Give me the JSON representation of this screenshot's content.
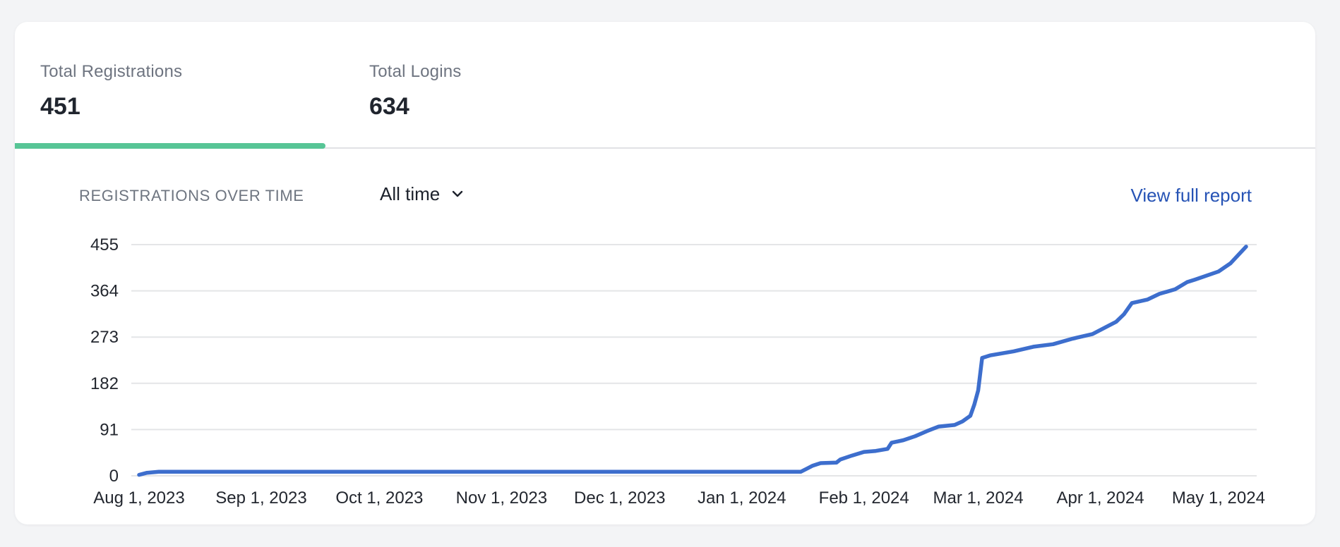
{
  "colors": {
    "page_background": "#f3f4f6",
    "card_background": "#ffffff",
    "active_tab_accent": "#57c596",
    "series_line": "#3d6ecd",
    "link_blue": "#2653b5",
    "gridline": "#e4e5e7",
    "axis_text": "#23272f",
    "muted_text": "#6e7480"
  },
  "tabs": [
    {
      "label": "Total Registrations",
      "value": "451",
      "active": true
    },
    {
      "label": "Total Logins",
      "value": "634",
      "active": false
    }
  ],
  "chart_header": {
    "title": "REGISTRATIONS OVER TIME",
    "range_selector": {
      "value": "All time",
      "icon": "chevron-down"
    },
    "link": "View full report"
  },
  "chart_data": {
    "type": "line",
    "title": "REGISTRATIONS OVER TIME",
    "series_name": "Registrations",
    "grid": "horizontal",
    "legend": "none",
    "ylim": [
      0,
      455
    ],
    "y_ticks": [
      0,
      91,
      182,
      273,
      364,
      455
    ],
    "x_ticks": [
      {
        "label": "Aug 1, 2023",
        "day": 0
      },
      {
        "label": "Sep 1, 2023",
        "day": 31
      },
      {
        "label": "Oct 1, 2023",
        "day": 61
      },
      {
        "label": "Nov 1, 2023",
        "day": 92
      },
      {
        "label": "Dec 1, 2023",
        "day": 122
      },
      {
        "label": "Jan 1, 2024",
        "day": 153
      },
      {
        "label": "Feb 1, 2024",
        "day": 184
      },
      {
        "label": "Mar 1, 2024",
        "day": 213
      },
      {
        "label": "Apr 1, 2024",
        "day": 244
      },
      {
        "label": "May 1, 2024",
        "day": 274
      }
    ],
    "points": [
      [
        0,
        2
      ],
      [
        2,
        6
      ],
      [
        5,
        8
      ],
      [
        31,
        8
      ],
      [
        61,
        8
      ],
      [
        92,
        8
      ],
      [
        122,
        8
      ],
      [
        153,
        8
      ],
      [
        168,
        8
      ],
      [
        171,
        20
      ],
      [
        173,
        25
      ],
      [
        177,
        26
      ],
      [
        178,
        32
      ],
      [
        181,
        40
      ],
      [
        184,
        47
      ],
      [
        187,
        49
      ],
      [
        190,
        53
      ],
      [
        191,
        65
      ],
      [
        194,
        70
      ],
      [
        197,
        78
      ],
      [
        200,
        88
      ],
      [
        203,
        97
      ],
      [
        207,
        100
      ],
      [
        209,
        107
      ],
      [
        211,
        118
      ],
      [
        212,
        140
      ],
      [
        213,
        168
      ],
      [
        214,
        232
      ],
      [
        216,
        237
      ],
      [
        222,
        245
      ],
      [
        227,
        254
      ],
      [
        232,
        259
      ],
      [
        237,
        270
      ],
      [
        242,
        279
      ],
      [
        246,
        295
      ],
      [
        248,
        303
      ],
      [
        250,
        318
      ],
      [
        252,
        340
      ],
      [
        256,
        347
      ],
      [
        259,
        358
      ],
      [
        263,
        367
      ],
      [
        266,
        381
      ],
      [
        268,
        386
      ],
      [
        274,
        402
      ],
      [
        277,
        418
      ],
      [
        281,
        451
      ]
    ]
  }
}
